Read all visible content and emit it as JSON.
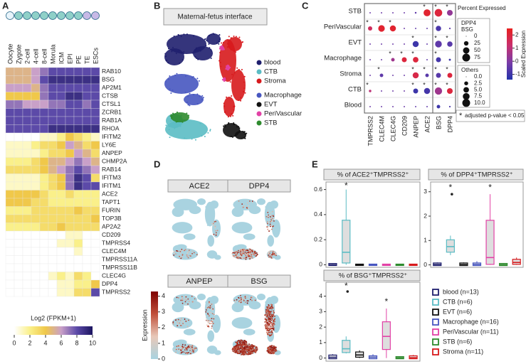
{
  "chart_data": [
    {
      "type": "heatmap",
      "panel_label": "A",
      "categories": [
        "Oocyte",
        "Zygote",
        "2-cell",
        "4-cell",
        "8-cell",
        "Morula",
        "ICM",
        "EPI",
        "PE",
        "TE",
        "ESCs"
      ],
      "rows": [
        "RAB10",
        "BSG",
        "AP2M1",
        "CTSB",
        "CTSL1",
        "ZCRB1",
        "RAB1A",
        "RHOA",
        "IFITM2",
        "LY6E",
        "ANPEP",
        "CHMP2A",
        "RAB14",
        "IFITM3",
        "IFITM1",
        "ACE2",
        "TAPT1",
        "FURIN",
        "TOP3B",
        "AP2A2",
        "CD209",
        "TMPRSS4",
        "CLEC4M",
        "TMPRSS11A",
        "TMPRSS11B",
        "CLEC4G",
        "DPP4",
        "TMPRSS2"
      ],
      "values": [
        [
          5,
          5,
          5,
          6,
          7,
          8,
          8,
          8,
          8,
          8,
          8
        ],
        [
          5,
          5,
          5,
          6,
          8,
          9,
          9,
          9,
          9,
          9,
          9
        ],
        [
          6,
          6,
          6,
          5,
          7,
          8,
          8,
          8,
          8,
          8,
          8
        ],
        [
          4,
          4,
          4,
          4,
          7,
          8,
          8,
          9,
          9,
          8,
          8
        ],
        [
          7,
          7,
          6,
          6,
          6,
          7,
          7,
          8,
          8,
          7,
          8
        ],
        [
          8,
          8,
          8,
          8,
          8,
          8,
          8,
          8,
          8,
          8,
          8
        ],
        [
          8,
          8,
          8,
          8,
          8,
          8,
          8,
          8,
          8,
          8,
          8
        ],
        [
          8,
          8,
          8,
          8,
          8,
          9,
          9,
          9,
          9,
          9,
          9
        ],
        [
          0,
          0,
          0,
          0,
          1,
          1,
          2,
          4,
          3,
          2,
          1
        ],
        [
          1,
          1,
          1,
          2,
          3,
          3,
          4,
          6,
          5,
          3,
          4
        ],
        [
          1,
          1,
          1,
          1,
          2,
          3,
          3,
          4,
          6,
          5,
          3
        ],
        [
          2,
          2,
          2,
          3,
          4,
          5,
          5,
          6,
          7,
          6,
          5
        ],
        [
          3,
          3,
          3,
          3,
          4,
          5,
          6,
          7,
          8,
          7,
          6
        ],
        [
          1,
          1,
          1,
          1,
          2,
          3,
          4,
          7,
          9,
          8,
          3
        ],
        [
          1,
          1,
          1,
          1,
          2,
          3,
          4,
          7,
          9,
          8,
          8
        ],
        [
          4,
          4,
          4,
          4,
          3,
          2,
          2,
          3,
          2,
          2,
          2
        ],
        [
          4,
          4,
          4,
          3,
          3,
          2,
          2,
          2,
          2,
          2,
          2
        ],
        [
          2,
          2,
          2,
          3,
          3,
          3,
          3,
          3,
          4,
          3,
          3
        ],
        [
          3,
          3,
          3,
          3,
          3,
          3,
          3,
          3,
          3,
          3,
          4
        ],
        [
          2,
          2,
          2,
          2,
          3,
          3,
          4,
          3,
          3,
          3,
          3
        ],
        [
          0,
          0,
          0,
          0,
          0,
          0,
          0,
          1,
          1,
          0,
          0
        ],
        [
          0,
          0,
          0,
          0,
          0,
          0,
          1,
          1,
          2,
          0,
          0
        ],
        [
          0,
          0,
          0,
          0,
          0,
          0,
          0,
          0,
          1,
          0,
          0
        ],
        [
          0,
          0,
          0,
          0,
          0,
          0,
          0,
          0,
          0,
          0,
          0
        ],
        [
          0,
          0,
          0,
          0,
          0,
          0,
          0,
          0,
          0,
          0,
          0
        ],
        [
          0,
          0,
          0,
          0,
          0,
          1,
          2,
          1,
          3,
          2,
          0
        ],
        [
          0,
          0,
          0,
          0,
          0,
          0,
          1,
          1,
          2,
          2,
          4
        ],
        [
          0,
          0,
          0,
          0,
          0,
          0,
          1,
          1,
          3,
          3,
          8
        ]
      ],
      "colorbar_label": "Log2 (FPKM+1)",
      "zlim": [
        0,
        10
      ],
      "zticks": [
        0,
        2,
        4,
        6,
        8,
        10
      ],
      "colorscale": [
        "#ffffff",
        "#faf08a",
        "#f0c84a",
        "#c9a0c8",
        "#5c4aa8",
        "#1c1560"
      ]
    },
    {
      "type": "umap",
      "panel_label": "B",
      "title": "Maternal-fetus interface",
      "series": [
        {
          "name": "blood",
          "color": "#1f1f6e"
        },
        {
          "name": "CTB",
          "color": "#5bbcc4"
        },
        {
          "name": "Stroma",
          "color": "#d7191c"
        },
        {
          "name": "Macrophage",
          "color": "#4756c0"
        },
        {
          "name": "EVT",
          "color": "#111111"
        },
        {
          "name": "PeriVascular",
          "color": "#e242a6"
        },
        {
          "name": "STB",
          "color": "#2e8b2e"
        }
      ]
    },
    {
      "type": "dotplot",
      "panel_label": "C",
      "rows": [
        "STB",
        "PeriVascular",
        "EVT",
        "Macrophage",
        "Stroma",
        "CTB",
        "Blood"
      ],
      "columns": [
        "TMPRSS2",
        "CLEC4M",
        "CLEC4G",
        "CD209",
        "ANPEP",
        "ACE2",
        "BSG",
        "DPP4"
      ],
      "percent": [
        [
          0.3,
          0.3,
          0.3,
          0.3,
          0.5,
          8,
          70,
          40
        ],
        [
          3,
          7,
          6,
          0.3,
          0.3,
          0.3,
          35,
          3
        ],
        [
          0.3,
          0.3,
          0.3,
          0.3,
          6,
          0.3,
          55,
          35
        ],
        [
          0.3,
          0.3,
          2,
          4,
          5,
          0.3,
          30,
          5
        ],
        [
          0.3,
          2,
          0.3,
          0.3,
          6,
          2,
          30,
          30
        ],
        [
          1,
          0.3,
          0.3,
          0.3,
          4,
          6,
          65,
          40
        ],
        [
          0.3,
          0.3,
          0.3,
          0.3,
          0.3,
          0.3,
          15,
          3
        ]
      ],
      "expression": [
        [
          -0.3,
          -0.3,
          -0.3,
          -0.3,
          -0.5,
          2.2,
          2.0,
          0.3
        ],
        [
          1.5,
          2.2,
          2.2,
          -0.3,
          -0.5,
          -0.5,
          -0.8,
          -0.5
        ],
        [
          -0.3,
          -0.3,
          -0.3,
          -0.3,
          -1.0,
          -0.5,
          -0.5,
          -0.6
        ],
        [
          -0.3,
          -0.3,
          0.5,
          2.0,
          2.0,
          -0.5,
          -0.9,
          -1.0
        ],
        [
          -0.3,
          -0.5,
          -0.3,
          -0.3,
          1.8,
          -0.6,
          -0.6,
          2.0
        ],
        [
          1.0,
          -0.3,
          -0.3,
          -0.3,
          -1.0,
          -0.9,
          0.5,
          2.0
        ],
        [
          -0.3,
          -0.3,
          -0.3,
          -0.3,
          -0.5,
          -0.5,
          -1.0,
          -0.8
        ]
      ],
      "significant": [
        [
          false,
          false,
          false,
          false,
          false,
          true,
          true,
          true
        ],
        [
          true,
          true,
          true,
          false,
          false,
          false,
          true,
          false
        ],
        [
          false,
          false,
          false,
          false,
          true,
          false,
          true,
          true
        ],
        [
          false,
          false,
          true,
          true,
          true,
          false,
          true,
          false
        ],
        [
          false,
          true,
          false,
          false,
          true,
          true,
          true,
          true
        ],
        [
          true,
          false,
          false,
          false,
          true,
          true,
          true,
          true
        ],
        [
          false,
          false,
          false,
          false,
          false,
          false,
          false,
          false
        ]
      ],
      "marker_label": "*",
      "note": "adjusted p-value < 0.05",
      "size_title": "Percent Expressed",
      "size_legends": [
        {
          "title": [
            "DPP4",
            "BSG"
          ],
          "ticks": [
            0,
            25,
            50,
            75
          ]
        },
        {
          "title": [
            "Others"
          ],
          "ticks": [
            {
              "value": 0,
              "label": "0.0"
            },
            2.5,
            {
              "value": 5,
              "label": "5.0"
            },
            7.5,
            {
              "value": 10,
              "label": "10.0"
            }
          ]
        }
      ],
      "color_title": "Scaled Expression",
      "clim": [
        -1.4,
        2.5
      ],
      "cticks": [
        -1,
        0,
        1,
        2
      ],
      "colorscale": [
        "#2233aa",
        "#7a3ca8",
        "#c8306e",
        "#e8201e"
      ]
    },
    {
      "type": "feature",
      "panel_label": "D",
      "panels": [
        "ACE2",
        "DPP4",
        "ANPEP",
        "BSG"
      ],
      "colorbar_label": "Expression",
      "zlim": [
        0,
        4.3
      ],
      "zticks": [
        0,
        1,
        2,
        3,
        4
      ],
      "colorscale": [
        "#a9d3e0",
        "#e8c8b8",
        "#c0503a",
        "#7f0000"
      ]
    },
    {
      "type": "box",
      "panel_label": "E",
      "marker_label": "*",
      "series": [
        {
          "name": "blood (n=13)",
          "color": "#1f1f6e"
        },
        {
          "name": "CTB (n=6)",
          "color": "#5bbcc4"
        },
        {
          "name": "EVT (n=6)",
          "color": "#111111"
        },
        {
          "name": "Macrophage (n=16)",
          "color": "#4756c0"
        },
        {
          "name": "PeriVascular (n=11)",
          "color": "#e242a6"
        },
        {
          "name": "STB (n=6)",
          "color": "#2e8b2e"
        },
        {
          "name": "Stroma (n=11)",
          "color": "#d7191c"
        }
      ],
      "panels": [
        {
          "title": "% of ACE2⁺TMPRSS2⁺",
          "ylim": [
            -0.02,
            0.66
          ],
          "yticks": [
            0,
            0.2,
            0.4,
            0.6
          ],
          "low": [
            0,
            0,
            0,
            0,
            0,
            0,
            0
          ],
          "q1": [
            0,
            0.02,
            0,
            0,
            0,
            0,
            0
          ],
          "median": [
            0,
            0.1,
            0,
            0,
            0,
            0,
            0
          ],
          "q3": [
            0.005,
            0.35,
            0,
            0,
            0,
            0,
            0
          ],
          "high": [
            0.01,
            0.6,
            0,
            0,
            0,
            0,
            0
          ],
          "outliers": [
            [],
            [],
            [],
            [],
            [],
            [],
            []
          ],
          "significant": [
            false,
            true,
            false,
            false,
            false,
            false,
            false
          ]
        },
        {
          "title": "% of DPP4⁺TMPRSS2⁺",
          "ylim": [
            -0.1,
            3.4
          ],
          "yticks": [
            0,
            1,
            2,
            3
          ],
          "low": [
            0,
            0.4,
            0,
            0,
            0,
            0,
            0
          ],
          "q1": [
            0,
            0.55,
            0,
            0,
            0.05,
            0,
            0.05
          ],
          "median": [
            0.02,
            0.75,
            0.02,
            0.02,
            0.3,
            0.01,
            0.1
          ],
          "q3": [
            0.05,
            1.0,
            0.05,
            0.05,
            1.8,
            0.03,
            0.2
          ],
          "high": [
            0.1,
            1.2,
            0.1,
            0.15,
            2.9,
            0.05,
            0.3
          ],
          "outliers": [
            [],
            [
              2.9
            ],
            [],
            [],
            [],
            [],
            []
          ],
          "significant": [
            false,
            true,
            false,
            false,
            true,
            false,
            false
          ]
        },
        {
          "title": "% of BSG⁺TMPRSS2⁺",
          "ylim": [
            -0.2,
            4.9
          ],
          "yticks": [
            0,
            1,
            2,
            3,
            4
          ],
          "low": [
            0,
            0.3,
            0,
            0,
            0,
            0,
            0
          ],
          "q1": [
            0,
            0.4,
            0.1,
            0,
            0.6,
            0,
            0
          ],
          "median": [
            0.05,
            0.6,
            0.2,
            0.05,
            1.4,
            0.02,
            0.02
          ],
          "q3": [
            0.15,
            1.1,
            0.35,
            0.1,
            2.3,
            0.05,
            0.1
          ],
          "high": [
            0.25,
            1.4,
            0.5,
            0.25,
            3.2,
            0.1,
            0.2
          ],
          "outliers": [
            [],
            [
              4.3
            ],
            [],
            [],
            [],
            [],
            []
          ],
          "significant": [
            false,
            true,
            false,
            false,
            true,
            false,
            false
          ]
        }
      ]
    }
  ]
}
